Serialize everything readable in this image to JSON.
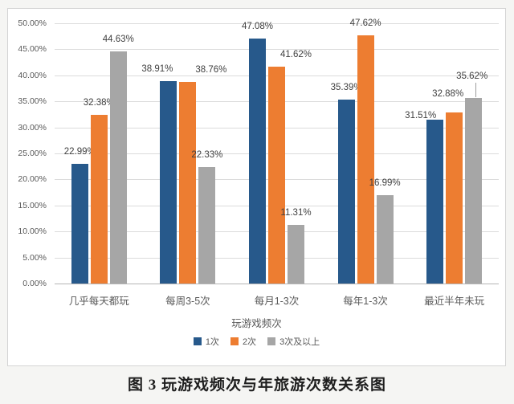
{
  "chart_data": {
    "type": "bar",
    "title": "",
    "categories": [
      "几乎每天都玩",
      "每周3-5次",
      "每月1-3次",
      "每年1-3次",
      "最近半年未玩"
    ],
    "series": [
      {
        "name": "1次",
        "color": "#27598b",
        "values": [
          22.99,
          38.91,
          47.08,
          35.39,
          31.51
        ]
      },
      {
        "name": "2次",
        "color": "#ed7d31",
        "values": [
          32.38,
          38.76,
          41.62,
          47.62,
          32.88
        ]
      },
      {
        "name": "3次及以上",
        "color": "#a6a6a6",
        "values": [
          44.63,
          22.33,
          11.31,
          16.99,
          35.62
        ]
      }
    ],
    "xlabel": "玩游戏频次",
    "ylabel": "",
    "ylim": [
      0,
      50
    ],
    "ytick_step": 5,
    "ytick_labels": [
      "50.00%",
      "45.00%",
      "40.00%",
      "35.00%",
      "30.00%",
      "25.00%",
      "20.00%",
      "15.00%",
      "10.00%",
      "5.00%",
      "0.00%"
    ],
    "grid": true,
    "legend_position": "bottom",
    "value_labels": true,
    "value_label_format": "0.00%"
  },
  "legend": {
    "items": [
      {
        "label": "1次",
        "color": "#27598b"
      },
      {
        "label": "2次",
        "color": "#ed7d31"
      },
      {
        "label": "3次及以上",
        "color": "#a6a6a6"
      }
    ]
  },
  "caption": "图 3  玩游戏频次与年旅游次数关系图",
  "colors": {
    "background": "#f5f5f3",
    "chart_background": "#ffffff",
    "chart_border": "#d4d4d4",
    "gridline": "#dcdcdc",
    "axis_line": "#b5b5b5",
    "tick_text": "#595959",
    "value_label_text": "#3f3f3f",
    "caption_text": "#1f1f1f"
  }
}
